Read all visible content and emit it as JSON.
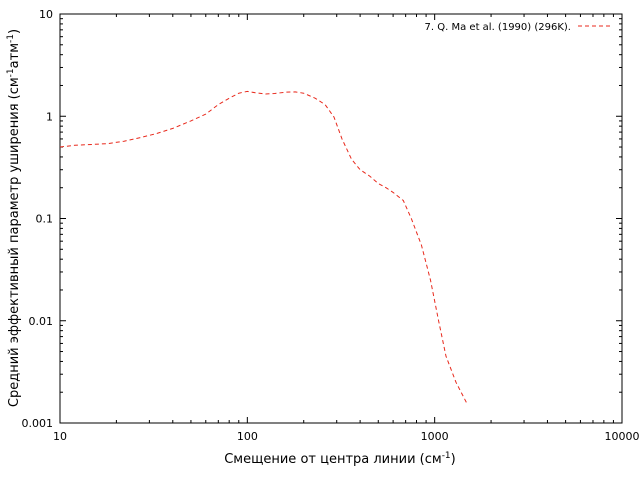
{
  "chart_data": {
    "type": "line",
    "xscale": "log",
    "yscale": "log",
    "xlim": [
      10,
      10000
    ],
    "ylim": [
      0.001,
      10
    ],
    "xlabel": "Смещение от центра линии (см",
    "xlabel_sup": "-1",
    "xlabel_end": ")",
    "ylabel_parts": [
      "Средний эффективный параметр уширения (см",
      "-1",
      "атм",
      "-1",
      ")"
    ],
    "x_ticks": [
      {
        "value": 10,
        "label": "10"
      },
      {
        "value": 100,
        "label": "100"
      },
      {
        "value": 1000,
        "label": "1000"
      },
      {
        "value": 10000,
        "label": "10000"
      }
    ],
    "y_ticks": [
      {
        "value": 0.001,
        "label": "0.001"
      },
      {
        "value": 0.01,
        "label": "0.01"
      },
      {
        "value": 0.1,
        "label": "0.1"
      },
      {
        "value": 1,
        "label": "1"
      },
      {
        "value": 10,
        "label": "10"
      }
    ],
    "grid": false,
    "legend_position": "top-right",
    "series": [
      {
        "name": "7.  Q. Ma et al. (1990) (296K).",
        "color": "#e8291c",
        "dash": "dashed",
        "x": [
          10,
          12,
          15,
          18,
          22,
          27,
          33,
          40,
          50,
          60,
          70,
          80,
          90,
          100,
          110,
          125,
          140,
          160,
          180,
          200,
          230,
          260,
          290,
          320,
          360,
          400,
          450,
          500,
          550,
          600,
          680,
          750,
          850,
          950,
          1050,
          1150,
          1300,
          1500
        ],
        "y": [
          0.5,
          0.52,
          0.53,
          0.54,
          0.57,
          0.62,
          0.68,
          0.76,
          0.9,
          1.05,
          1.3,
          1.5,
          1.68,
          1.75,
          1.7,
          1.65,
          1.67,
          1.72,
          1.73,
          1.68,
          1.5,
          1.3,
          0.98,
          0.6,
          0.38,
          0.3,
          0.26,
          0.22,
          0.2,
          0.18,
          0.15,
          0.1,
          0.055,
          0.025,
          0.01,
          0.0045,
          0.0025,
          0.0015
        ]
      }
    ]
  }
}
